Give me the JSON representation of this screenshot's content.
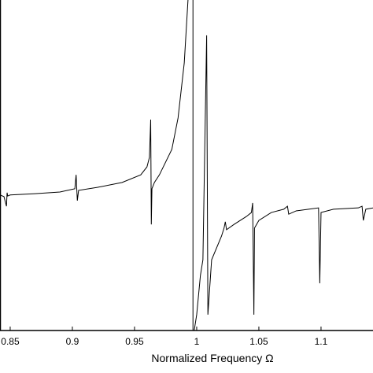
{
  "chart_data": {
    "type": "line",
    "x_label": "Normalized Frequency  Ω",
    "xlim": [
      0.8418,
      1.1418
    ],
    "ylim": [
      0,
      1
    ],
    "xticks": [
      0.85,
      0.9,
      0.95,
      1,
      1.05,
      1.1
    ],
    "color": "#000000",
    "x": [
      0.842,
      0.845,
      0.847,
      0.8475,
      0.848,
      0.85,
      0.87,
      0.89,
      0.902,
      0.903,
      0.904,
      0.905,
      0.92,
      0.94,
      0.955,
      0.96,
      0.962,
      0.963,
      0.9635,
      0.964,
      0.966,
      0.97,
      0.98,
      0.985,
      0.99,
      0.993,
      0.995,
      0.997,
      0.997,
      0.9972,
      0.998,
      1.0,
      1.003,
      1.005,
      1.008,
      1.009,
      1.012,
      1.02,
      1.022,
      1.023,
      1.024,
      1.03,
      1.04,
      1.044,
      1.045,
      1.046,
      1.0465,
      1.05,
      1.06,
      1.07,
      1.073,
      1.074,
      1.08,
      1.09,
      1.098,
      1.099,
      1.1,
      1.11,
      1.13,
      1.133,
      1.134,
      1.136,
      1.142
    ],
    "values": [
      0.41,
      0.405,
      0.376,
      0.417,
      0.407,
      0.41,
      0.414,
      0.419,
      0.429,
      0.471,
      0.393,
      0.424,
      0.433,
      0.448,
      0.471,
      0.495,
      0.524,
      0.638,
      0.321,
      0.429,
      0.448,
      0.471,
      0.548,
      0.643,
      0.81,
      1,
      null,
      1,
      0,
      null,
      0,
      0.048,
      0.167,
      0.214,
      0.893,
      0.048,
      0.214,
      0.286,
      0.31,
      0.329,
      0.305,
      0.321,
      0.345,
      0.357,
      0.386,
      0.048,
      0.31,
      0.333,
      0.357,
      0.367,
      0.376,
      0.352,
      0.362,
      0.367,
      0.371,
      0.143,
      0.357,
      0.367,
      0.371,
      0.376,
      0.333,
      0.367,
      0.371
    ]
  }
}
